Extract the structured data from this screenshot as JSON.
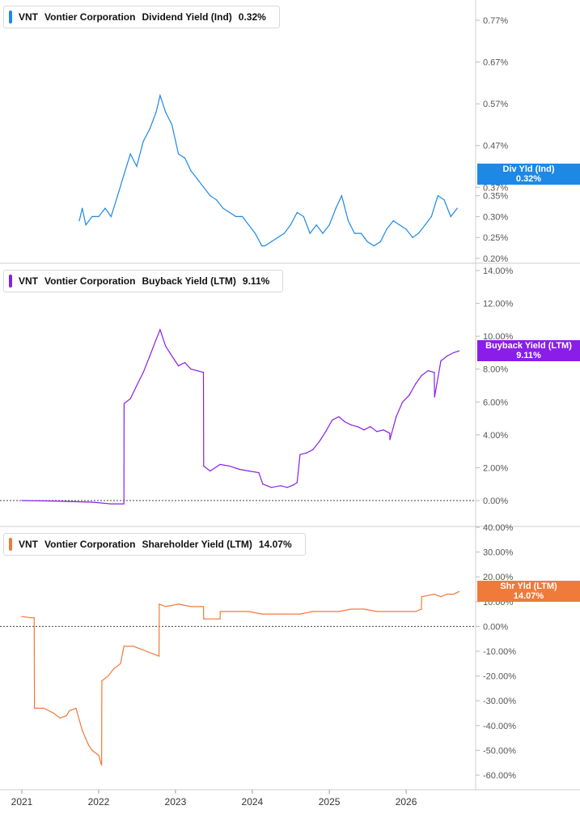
{
  "chart_data": [
    {
      "type": "line",
      "ticker": "VNT",
      "company": "Vontier Corporation",
      "metric": "Dividend Yield (Ind)",
      "current_value": "0.32%",
      "tag_label": "Div Yld (Ind)",
      "color": "#1e88e5",
      "y_ticks": [
        "0.77%",
        "0.67%",
        "0.57%",
        "0.47%",
        "0.37%",
        "0.35%",
        "0.30%",
        "0.25%",
        "0.20%"
      ],
      "ylim": [
        0.2,
        0.8
      ],
      "series": [
        {
          "x": [
            "2021-10-01",
            "2021-10-15",
            "2021-11-01",
            "2021-12-01",
            "2022-01-01",
            "2022-02-01",
            "2022-03-01",
            "2022-04-01",
            "2022-05-01",
            "2022-06-01",
            "2022-07-01",
            "2022-08-01",
            "2022-09-01",
            "2022-10-01",
            "2022-10-20",
            "2022-11-15",
            "2022-12-15",
            "2023-01-15",
            "2023-02-15",
            "2023-03-15",
            "2023-04-15",
            "2023-05-15",
            "2023-06-15",
            "2023-07-15",
            "2023-08-15",
            "2023-09-15",
            "2023-10-15",
            "2023-11-15",
            "2023-12-15",
            "2024-01-15",
            "2024-02-15",
            "2024-03-01",
            "2024-04-01",
            "2024-05-01",
            "2024-06-01",
            "2024-07-01",
            "2024-08-01",
            "2024-09-01",
            "2024-10-01",
            "2024-11-01",
            "2024-12-01",
            "2025-01-01",
            "2025-02-01",
            "2025-03-01",
            "2025-04-01",
            "2025-05-01",
            "2025-06-01",
            "2025-07-01",
            "2025-08-01",
            "2025-09-01",
            "2025-10-01",
            "2025-11-01",
            "2025-12-01",
            "2026-01-01",
            "2026-02-01",
            "2026-03-01",
            "2026-04-01",
            "2026-05-01",
            "2026-06-01",
            "2026-07-01",
            "2026-08-01",
            "2026-09-01"
          ],
          "y": [
            0.29,
            0.32,
            0.28,
            0.3,
            0.3,
            0.32,
            0.3,
            0.35,
            0.4,
            0.45,
            0.42,
            0.48,
            0.51,
            0.55,
            0.59,
            0.55,
            0.52,
            0.45,
            0.44,
            0.41,
            0.39,
            0.37,
            0.35,
            0.34,
            0.32,
            0.31,
            0.3,
            0.3,
            0.28,
            0.26,
            0.23,
            0.23,
            0.24,
            0.25,
            0.26,
            0.28,
            0.31,
            0.3,
            0.26,
            0.28,
            0.26,
            0.28,
            0.32,
            0.35,
            0.29,
            0.26,
            0.26,
            0.24,
            0.23,
            0.24,
            0.27,
            0.29,
            0.28,
            0.27,
            0.25,
            0.26,
            0.28,
            0.3,
            0.35,
            0.34,
            0.3,
            0.32
          ]
        }
      ]
    },
    {
      "type": "line",
      "ticker": "VNT",
      "company": "Vontier Corporation",
      "metric": "Buyback Yield (LTM)",
      "current_value": "9.11%",
      "tag_label": "Buyback Yield (LTM)",
      "color": "#8a1ee8",
      "y_ticks": [
        "14.00%",
        "12.00%",
        "10.00%",
        "8.00%",
        "6.00%",
        "4.00%",
        "2.00%",
        "0.00%"
      ],
      "ylim": [
        0,
        14
      ],
      "series": [
        {
          "x": [
            "2021-01-01",
            "2021-06-01",
            "2021-12-01",
            "2022-03-01",
            "2022-05-01",
            "2022-05-02",
            "2022-06-01",
            "2022-07-01",
            "2022-08-01",
            "2022-09-01",
            "2022-10-01",
            "2022-10-20",
            "2022-11-15",
            "2022-12-15",
            "2023-01-15",
            "2023-02-15",
            "2023-03-15",
            "2023-04-15",
            "2023-05-14",
            "2023-05-15",
            "2023-06-15",
            "2023-08-01",
            "2023-09-15",
            "2023-11-01",
            "2023-12-15",
            "2024-02-01",
            "2024-02-20",
            "2024-04-01",
            "2024-05-15",
            "2024-06-15",
            "2024-07-15",
            "2024-08-01",
            "2024-08-15",
            "2024-09-15",
            "2024-10-15",
            "2024-11-15",
            "2024-12-15",
            "2025-01-15",
            "2025-02-15",
            "2025-03-15",
            "2025-04-15",
            "2025-05-15",
            "2025-06-15",
            "2025-07-15",
            "2025-08-15",
            "2025-09-15",
            "2025-10-15",
            "2025-10-16",
            "2025-11-15",
            "2025-12-15",
            "2026-01-15",
            "2026-02-15",
            "2026-03-15",
            "2026-04-15",
            "2026-05-15",
            "2026-05-16",
            "2026-06-15",
            "2026-07-15",
            "2026-08-15",
            "2026-09-10"
          ],
          "y": [
            0.0,
            -0.03,
            -0.1,
            -0.2,
            -0.2,
            5.9,
            6.2,
            7.0,
            7.8,
            8.8,
            9.8,
            10.4,
            9.4,
            8.8,
            8.2,
            8.4,
            8.0,
            7.9,
            7.8,
            2.1,
            1.8,
            2.2,
            2.1,
            1.9,
            1.8,
            1.7,
            1.0,
            0.8,
            0.9,
            0.8,
            0.95,
            1.1,
            2.8,
            2.9,
            3.1,
            3.6,
            4.2,
            4.9,
            5.1,
            4.8,
            4.6,
            4.5,
            4.3,
            4.5,
            4.2,
            4.3,
            4.1,
            3.7,
            5.1,
            6.0,
            6.4,
            7.1,
            7.6,
            7.9,
            7.8,
            6.3,
            8.5,
            8.8,
            9.0,
            9.11
          ]
        }
      ]
    },
    {
      "type": "line",
      "ticker": "VNT",
      "company": "Vontier Corporation",
      "metric": "Shareholder Yield (LTM)",
      "current_value": "14.07%",
      "tag_label": "Shr Yld (LTM)",
      "color": "#f07a3a",
      "y_ticks": [
        "40.00%",
        "30.00%",
        "20.00%",
        "10.00%",
        "0.00%",
        "-10.00%",
        "-20.00%",
        "-30.00%",
        "-40.00%",
        "-50.00%",
        "-60.00%"
      ],
      "ylim": [
        -60,
        40
      ],
      "series": [
        {
          "x": [
            "2021-01-01",
            "2021-02-15",
            "2021-03-01",
            "2021-03-02",
            "2021-04-15",
            "2021-06-01",
            "2021-07-01",
            "2021-08-01",
            "2021-08-15",
            "2021-09-15",
            "2021-10-15",
            "2021-11-15",
            "2021-12-01",
            "2022-01-01",
            "2022-01-15",
            "2022-01-16",
            "2022-02-15",
            "2022-03-15",
            "2022-04-15",
            "2022-05-01",
            "2022-06-15",
            "2022-07-15",
            "2022-08-15",
            "2022-09-15",
            "2022-10-15",
            "2022-10-16",
            "2022-11-15",
            "2023-01-15",
            "2023-03-15",
            "2023-05-14",
            "2023-05-15",
            "2023-07-15",
            "2023-08-01",
            "2023-08-02",
            "2023-10-15",
            "2023-12-15",
            "2024-02-15",
            "2024-04-15",
            "2024-06-15",
            "2024-08-15",
            "2024-10-15",
            "2024-12-15",
            "2025-02-15",
            "2025-04-15",
            "2025-06-15",
            "2025-08-15",
            "2025-10-15",
            "2025-12-15",
            "2026-02-15",
            "2026-03-15",
            "2026-03-16",
            "2026-05-15",
            "2026-06-15",
            "2026-07-15",
            "2026-08-15",
            "2026-09-10"
          ],
          "y": [
            4,
            3.5,
            3.5,
            -33,
            -33,
            -35,
            -37,
            -36,
            -34,
            -33,
            -42,
            -48,
            -50,
            -52,
            -56,
            -22,
            -20,
            -17,
            -15,
            -8,
            -8,
            -9,
            -10,
            -11,
            -12,
            9,
            8,
            9,
            8,
            8,
            3,
            3,
            3,
            6,
            6,
            6,
            5,
            5,
            5,
            5,
            6,
            6,
            6,
            7,
            7,
            6,
            6,
            6,
            6,
            7,
            12,
            13,
            12,
            13,
            13,
            14.07
          ]
        }
      ]
    }
  ],
  "x_axis": {
    "tick_labels": [
      "2021",
      "2022",
      "2023",
      "2024",
      "2025",
      "2026"
    ]
  }
}
